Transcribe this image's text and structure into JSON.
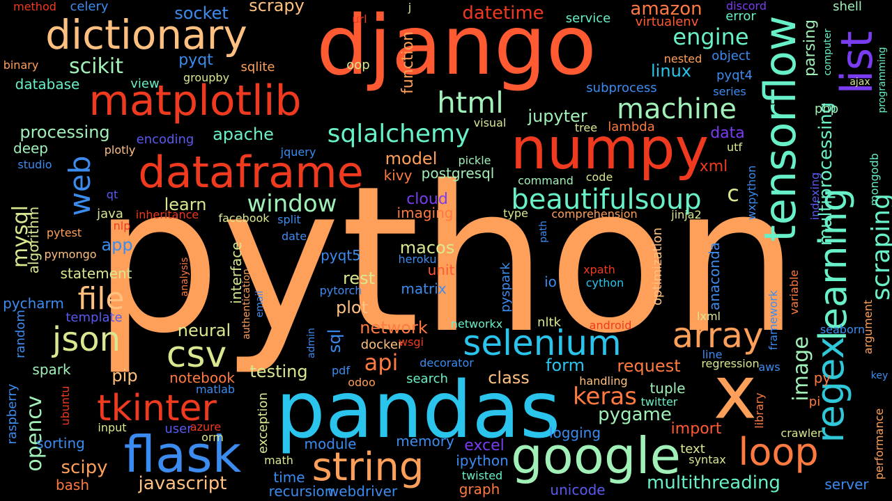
{
  "palette": {
    "background": "#000000",
    "orange": "#FFA05A",
    "red_orange": "#FF5A32",
    "red": "#F03A20",
    "peach": "#FFC080",
    "cyan": "#2AC4EC",
    "blue": "#3C8CF0",
    "aquamarine": "#68F0C8",
    "mint": "#A0F0B8",
    "yellow_green": "#D8E890",
    "purple": "#7A3CF0",
    "indigo": "#5A5AF0",
    "teal": "#30C8D8"
  },
  "words": [
    {
      "text": "python",
      "color": "#FFA05A"
    },
    {
      "text": "django",
      "color": "#FF5A32"
    },
    {
      "text": "pandas",
      "color": "#2AC4EC"
    },
    {
      "text": "numpy",
      "color": "#F03A20"
    },
    {
      "text": "x",
      "color": "#FFA05A"
    },
    {
      "text": "tensorflow",
      "color": "#68F0C8"
    },
    {
      "text": "list",
      "color": "#7A3CF0"
    },
    {
      "text": "dataframe",
      "color": "#F03A20"
    },
    {
      "text": "matplotlib",
      "color": "#F03A20"
    },
    {
      "text": "dictionary",
      "color": "#FFC080"
    },
    {
      "text": "google",
      "color": "#A0F0B8"
    },
    {
      "text": "flask",
      "color": "#3C8CF0"
    },
    {
      "text": "selenium",
      "color": "#2AC4EC"
    },
    {
      "text": "string",
      "color": "#FFA05A"
    },
    {
      "text": "csv",
      "color": "#D8E890"
    },
    {
      "text": "array",
      "color": "#FFA05A"
    },
    {
      "text": "regex",
      "color": "#30C8D8"
    },
    {
      "text": "learning",
      "color": "#68F0C8"
    },
    {
      "text": "tkinter",
      "color": "#F03A20"
    },
    {
      "text": "json",
      "color": "#D8E890"
    },
    {
      "text": "loop",
      "color": "#FF7A40"
    },
    {
      "text": "web",
      "color": "#3C8CF0"
    },
    {
      "text": "beautifulsoup",
      "color": "#68F0C8"
    },
    {
      "text": "file",
      "color": "#FFC080"
    },
    {
      "text": "machine",
      "color": "#A0F0B8"
    },
    {
      "text": "html",
      "color": "#A0F0B8"
    },
    {
      "text": "sqlalchemy",
      "color": "#68F0C8"
    },
    {
      "text": "engine",
      "color": "#68F0C8"
    },
    {
      "text": "scraping",
      "color": "#68F0C8"
    },
    {
      "text": "window",
      "color": "#A0F0B8"
    },
    {
      "text": "keras",
      "color": "#FF7A40"
    },
    {
      "text": "opencv",
      "color": "#A0F0B8"
    },
    {
      "text": "mysql",
      "color": "#D8E890"
    },
    {
      "text": "scikit",
      "color": "#A0F0B8"
    },
    {
      "text": "image",
      "color": "#A0F0B8"
    },
    {
      "text": "api",
      "color": "#FF7A40"
    },
    {
      "text": "javascript",
      "color": "#FFC080"
    },
    {
      "text": "multithreading",
      "color": "#68F0C8"
    },
    {
      "text": "pygame",
      "color": "#A0F0B8"
    },
    {
      "text": "scipy",
      "color": "#FFA05A"
    },
    {
      "text": "multiprocessing",
      "color": "#68F0C8"
    },
    {
      "text": "c",
      "color": "#D8E890"
    },
    {
      "text": "datetime",
      "color": "#F03A20"
    },
    {
      "text": "amazon",
      "color": "#FF7A40"
    },
    {
      "text": "socket",
      "color": "#3C8CF0"
    },
    {
      "text": "scrapy",
      "color": "#FFC080"
    },
    {
      "text": "processing",
      "color": "#A0F0B8"
    },
    {
      "text": "apache",
      "color": "#68F0C8"
    },
    {
      "text": "jupyter",
      "color": "#A0F0B8"
    },
    {
      "text": "linux",
      "color": "#2AC4EC"
    },
    {
      "text": "neural",
      "color": "#D8E890"
    },
    {
      "text": "testing",
      "color": "#D8E890"
    },
    {
      "text": "request",
      "color": "#FF7A40"
    },
    {
      "text": "form",
      "color": "#2AC4EC"
    },
    {
      "text": "class",
      "color": "#FFC080"
    },
    {
      "text": "network",
      "color": "#FF7A40"
    },
    {
      "text": "plot",
      "color": "#FFC080"
    },
    {
      "text": "rest",
      "color": "#D8E890"
    },
    {
      "text": "macos",
      "color": "#D8E890"
    },
    {
      "text": "model",
      "color": "#FFA05A"
    },
    {
      "text": "learn",
      "color": "#D8E890"
    },
    {
      "text": "pip",
      "color": "#FFC080"
    },
    {
      "text": "statement",
      "color": "#D8E890"
    },
    {
      "text": "app",
      "color": "#3C8CF0"
    },
    {
      "text": "parsing",
      "color": "#A0F0B8"
    },
    {
      "text": "function",
      "color": "#FFA05A"
    },
    {
      "text": "xml",
      "color": "#F03A20"
    },
    {
      "text": "data",
      "color": "#7A3CF0"
    },
    {
      "text": "cloud",
      "color": "#7A3CF0"
    },
    {
      "text": "sql",
      "color": "#3C8CF0"
    },
    {
      "text": "import",
      "color": "#FF5A32"
    },
    {
      "text": "excel",
      "color": "#7A3CF0"
    },
    {
      "text": "ipython",
      "color": "#3C8CF0"
    },
    {
      "text": "notebook",
      "color": "#FF7A40"
    },
    {
      "text": "sorting",
      "color": "#3C8CF0"
    },
    {
      "text": "pyqt",
      "color": "#3C8CF0"
    },
    {
      "text": "postgresql",
      "color": "#A0F0B8"
    },
    {
      "text": "kivy",
      "color": "#FF7A40"
    },
    {
      "text": "imaging",
      "color": "#FF7A40"
    },
    {
      "text": "pycharm",
      "color": "#3C8CF0"
    },
    {
      "text": "spark",
      "color": "#A0F0B8"
    },
    {
      "text": "bash",
      "color": "#FF7A40"
    },
    {
      "text": "time",
      "color": "#3C8CF0"
    },
    {
      "text": "recursion",
      "color": "#3C8CF0"
    },
    {
      "text": "webdriver",
      "color": "#3C8CF0"
    },
    {
      "text": "graph",
      "color": "#FF7A40"
    },
    {
      "text": "unicode",
      "color": "#5A5AF0"
    },
    {
      "text": "server",
      "color": "#3C8CF0"
    },
    {
      "text": "module",
      "color": "#3C8CF0"
    },
    {
      "text": "memory",
      "color": "#3C8CF0"
    },
    {
      "text": "logging",
      "color": "#3C8CF0"
    },
    {
      "text": "tuple",
      "color": "#A0F0B8"
    },
    {
      "text": "twitter",
      "color": "#68F0C8"
    },
    {
      "text": "docker",
      "color": "#FFC080"
    },
    {
      "text": "nltk",
      "color": "#D8E890"
    },
    {
      "text": "io",
      "color": "#3C8CF0"
    },
    {
      "text": "pyqt5",
      "color": "#3C8CF0"
    },
    {
      "text": "matrix",
      "color": "#3C8CF0"
    },
    {
      "text": "unit",
      "color": "#FF5A32"
    },
    {
      "text": "anaconda",
      "color": "#3C8CF0"
    },
    {
      "text": "optimization",
      "color": "#FFC080"
    },
    {
      "text": "cython",
      "color": "#2AC4EC"
    },
    {
      "text": "interface",
      "color": "#D8E890"
    },
    {
      "text": "exception",
      "color": "#D8E890"
    },
    {
      "text": "algorithm",
      "color": "#D8E890"
    },
    {
      "text": "random",
      "color": "#3C8CF0"
    },
    {
      "text": "deep",
      "color": "#A0F0B8"
    },
    {
      "text": "database",
      "color": "#68F0C8"
    },
    {
      "text": "binary",
      "color": "#FFA05A"
    },
    {
      "text": "method",
      "color": "#F03A20"
    },
    {
      "text": "celery",
      "color": "#3C8CF0"
    },
    {
      "text": "view",
      "color": "#68F0C8"
    },
    {
      "text": "groupby",
      "color": "#D8E890"
    },
    {
      "text": "sqlite",
      "color": "#FFA05A"
    },
    {
      "text": "oop",
      "color": "#D8E890"
    },
    {
      "text": "url",
      "color": "#F03A20"
    },
    {
      "text": "j",
      "color": "#D8E890"
    },
    {
      "text": "service",
      "color": "#68F0C8"
    },
    {
      "text": "virtualenv",
      "color": "#FF5A32"
    },
    {
      "text": "error",
      "color": "#68F0C8"
    },
    {
      "text": "discord",
      "color": "#7A3CF0"
    },
    {
      "text": "shell",
      "color": "#A0F0B8"
    },
    {
      "text": "nested",
      "color": "#FFA05A"
    },
    {
      "text": "object",
      "color": "#3C8CF0"
    },
    {
      "text": "pyqt4",
      "color": "#3C8CF0"
    },
    {
      "text": "series",
      "color": "#3C8CF0"
    },
    {
      "text": "subprocess",
      "color": "#3C8CF0"
    },
    {
      "text": "encoding",
      "color": "#5A5AF0"
    },
    {
      "text": "plotly",
      "color": "#FFC080"
    },
    {
      "text": "studio",
      "color": "#3C8CF0"
    },
    {
      "text": "jquery",
      "color": "#3C8CF0"
    },
    {
      "text": "visual",
      "color": "#D8E890"
    },
    {
      "text": "tree",
      "color": "#D8E890"
    },
    {
      "text": "lambda",
      "color": "#FF7A40"
    },
    {
      "text": "pickle",
      "color": "#A0F0B8"
    },
    {
      "text": "command",
      "color": "#A0F0B8"
    },
    {
      "text": "code",
      "color": "#D8E890"
    },
    {
      "text": "type",
      "color": "#D8E890"
    },
    {
      "text": "comprehension",
      "color": "#FFA05A"
    },
    {
      "text": "jinja2",
      "color": "#D8E890"
    },
    {
      "text": "utf",
      "color": "#D8E890"
    },
    {
      "text": "ajax",
      "color": "#D8E890"
    },
    {
      "text": "php",
      "color": "#A0F0B8"
    },
    {
      "text": "computer",
      "color": "#68F0C8"
    },
    {
      "text": "programming",
      "color": "#68F0C8"
    },
    {
      "text": "indexing",
      "color": "#5A5AF0"
    },
    {
      "text": "wxpython",
      "color": "#3C8CF0"
    },
    {
      "text": "mongodb",
      "color": "#68F0C8"
    },
    {
      "text": "qt",
      "color": "#5A5AF0"
    },
    {
      "text": "java",
      "color": "#D8E890"
    },
    {
      "text": "inheritance",
      "color": "#F03A20"
    },
    {
      "text": "facebook",
      "color": "#D8E890"
    },
    {
      "text": "split",
      "color": "#3C8CF0"
    },
    {
      "text": "pytest",
      "color": "#FFA05A"
    },
    {
      "text": "nlp",
      "color": "#F03A20"
    },
    {
      "text": "pymongo",
      "color": "#FFC080"
    },
    {
      "text": "date",
      "color": "#3C8CF0"
    },
    {
      "text": "heroku",
      "color": "#3C8CF0"
    },
    {
      "text": "pytorch",
      "color": "#3C8CF0"
    },
    {
      "text": "pyspark",
      "color": "#3C8CF0"
    },
    {
      "text": "path",
      "color": "#3C8CF0"
    },
    {
      "text": "xpath",
      "color": "#F03A20"
    },
    {
      "text": "analysis",
      "color": "#FF7A40"
    },
    {
      "text": "authentication",
      "color": "#FFA05A"
    },
    {
      "text": "email",
      "color": "#3C8CF0"
    },
    {
      "text": "template",
      "color": "#5A5AF0"
    },
    {
      "text": "admin",
      "color": "#3C8CF0"
    },
    {
      "text": "networkx",
      "color": "#68F0C8"
    },
    {
      "text": "android",
      "color": "#F03A20"
    },
    {
      "text": "lxml",
      "color": "#D8E890"
    },
    {
      "text": "variable",
      "color": "#FF7A40"
    },
    {
      "text": "framework",
      "color": "#3C8CF0"
    },
    {
      "text": "seaborn",
      "color": "#3C8CF0"
    },
    {
      "text": "argument",
      "color": "#FFA05A"
    },
    {
      "text": "wsgi",
      "color": "#F03A20"
    },
    {
      "text": "pdf",
      "color": "#3C8CF0"
    },
    {
      "text": "odoo",
      "color": "#FFA05A"
    },
    {
      "text": "decorator",
      "color": "#3C8CF0"
    },
    {
      "text": "search",
      "color": "#68F0C8"
    },
    {
      "text": "handling",
      "color": "#FFC080"
    },
    {
      "text": "line",
      "color": "#3C8CF0"
    },
    {
      "text": "regression",
      "color": "#D8E890"
    },
    {
      "text": "aws",
      "color": "#3C8CF0"
    },
    {
      "text": "key",
      "color": "#3C8CF0"
    },
    {
      "text": "py",
      "color": "#FF7A40"
    },
    {
      "text": "pi",
      "color": "#FF7A40"
    },
    {
      "text": "library",
      "color": "#FF7A40"
    },
    {
      "text": "crawler",
      "color": "#D8E890"
    },
    {
      "text": "performance",
      "color": "#FFA05A"
    },
    {
      "text": "raspberry",
      "color": "#3C8CF0"
    },
    {
      "text": "ubuntu",
      "color": "#F03A20"
    },
    {
      "text": "matlab",
      "color": "#3C8CF0"
    },
    {
      "text": "input",
      "color": "#D8E890"
    },
    {
      "text": "user",
      "color": "#5A5AF0"
    },
    {
      "text": "azure",
      "color": "#F03A20"
    },
    {
      "text": "orm",
      "color": "#D8E890"
    },
    {
      "text": "math",
      "color": "#D8E890"
    },
    {
      "text": "twisted",
      "color": "#68F0C8"
    },
    {
      "text": "text",
      "color": "#D8E890"
    },
    {
      "text": "syntax",
      "color": "#D8E890"
    }
  ]
}
